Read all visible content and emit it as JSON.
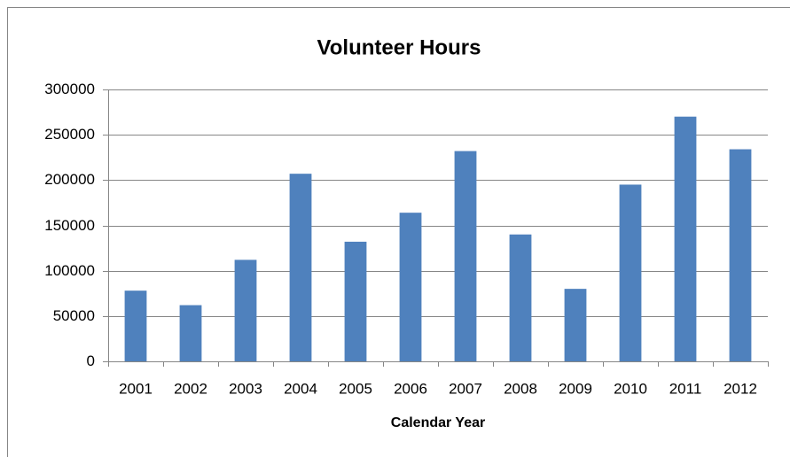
{
  "chart_data": {
    "type": "bar",
    "title": "Volunteer Hours",
    "x_label": "Calendar Year",
    "categories": [
      "2001",
      "2002",
      "2003",
      "2004",
      "2005",
      "2006",
      "2007",
      "2008",
      "2009",
      "2010",
      "2011",
      "2012"
    ],
    "values": [
      78000,
      62000,
      112000,
      207000,
      132000,
      164000,
      232000,
      140000,
      80000,
      195000,
      270000,
      234000
    ],
    "color": "#4f81bd",
    "ylim": [
      0,
      300000
    ],
    "yticks": [
      0,
      50000,
      100000,
      150000,
      200000,
      250000,
      300000
    ],
    "grid": true
  }
}
